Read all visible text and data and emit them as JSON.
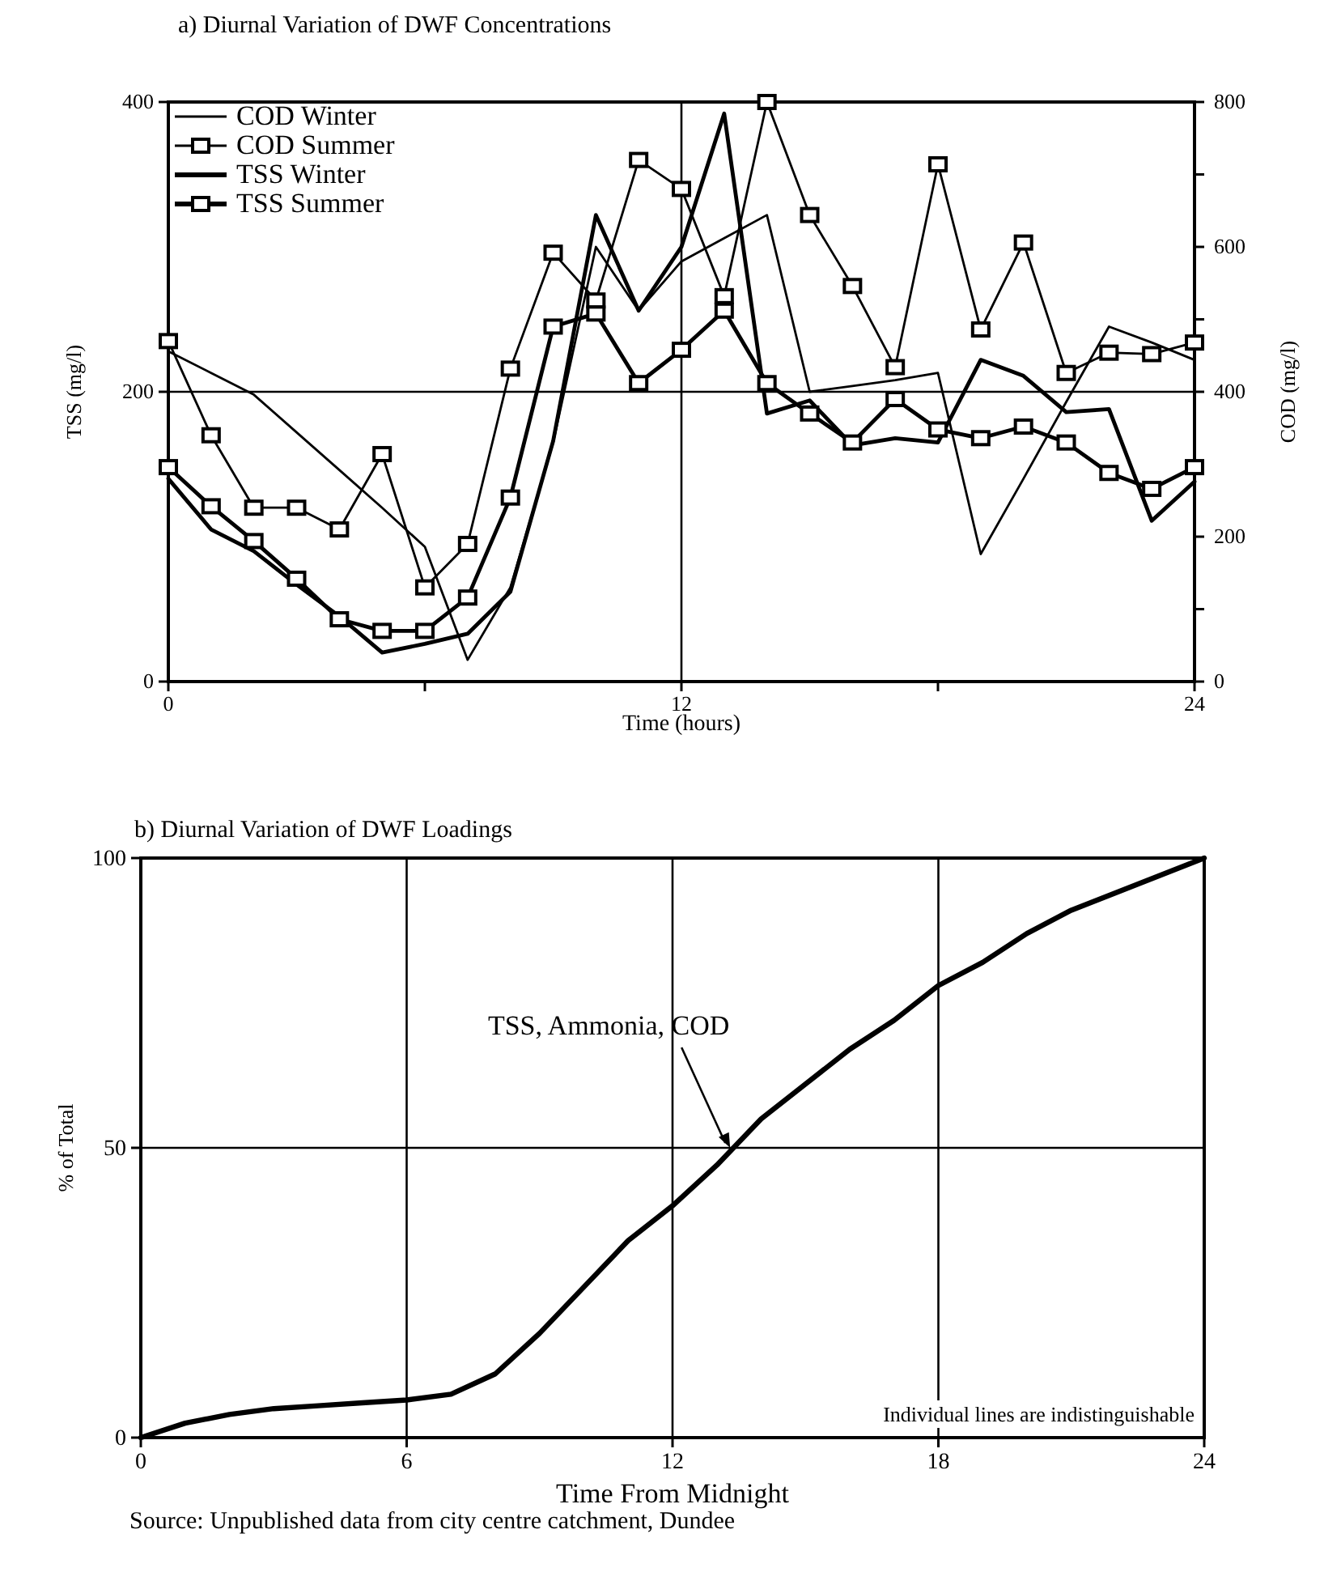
{
  "chart_data": [
    {
      "type": "line",
      "title": "a) Diurnal Variation of DWF Concentrations",
      "xlabel": "Time (hours)",
      "ylabel": "TSS (mg/l)",
      "y2label": "COD (mg/l)",
      "x": [
        0,
        1,
        2,
        3,
        4,
        5,
        6,
        7,
        8,
        9,
        10,
        11,
        12,
        13,
        14,
        15,
        16,
        17,
        18,
        19,
        20,
        21,
        22,
        23,
        24
      ],
      "series": [
        {
          "name": "COD Winter",
          "color": "#000000",
          "axis": "y2",
          "marker": "none",
          "values": [
            456,
            426,
            396,
            344,
            292,
            240,
            186,
            30,
            130,
            330,
            600,
            512,
            580,
            612,
            644,
            400,
            408,
            416,
            426,
            176,
            280,
            386,
            490,
            468,
            444
          ]
        },
        {
          "name": "COD Summer",
          "color": "#000000",
          "axis": "y2",
          "marker": "square",
          "values": [
            470,
            340,
            240,
            240,
            210,
            314,
            130,
            190,
            432,
            592,
            526,
            720,
            680,
            532,
            800,
            644,
            546,
            434,
            714,
            486,
            606,
            426,
            454,
            452,
            468
          ]
        },
        {
          "name": "TSS Winter",
          "color": "#000000",
          "marker": "none",
          "values": [
            140,
            105,
            90,
            67,
            45,
            20,
            26,
            33,
            62,
            166,
            322,
            256,
            300,
            392,
            185,
            194,
            163,
            168,
            165,
            222,
            211,
            186,
            188,
            111,
            138
          ]
        },
        {
          "name": "TSS Summer",
          "color": "#000000",
          "marker": "square",
          "values": [
            148,
            121,
            97,
            71,
            43,
            35,
            35,
            58,
            127,
            245,
            254,
            206,
            229,
            256,
            206,
            185,
            165,
            195,
            174,
            168,
            176,
            165,
            144,
            133,
            148
          ]
        }
      ],
      "xlim": [
        0,
        24
      ],
      "xticks": [
        0,
        {
          "value": 6,
          "label": null
        },
        12,
        {
          "value": 18,
          "label": null
        },
        24
      ],
      "ylim": [
        0,
        400
      ],
      "yticks": [
        0,
        200,
        400
      ],
      "y2lim": [
        0,
        800
      ],
      "y2ticks": [
        0,
        {
          "value": 100,
          "label": null
        },
        200,
        {
          "value": 300,
          "label": null
        },
        400,
        {
          "value": 500,
          "label": null
        },
        600,
        {
          "value": 700,
          "label": null
        },
        800
      ],
      "grid": true,
      "legend": "top left"
    },
    {
      "type": "line",
      "title": "b) Diurnal Variation of DWF Loadings",
      "xlabel": "Time From Midnight",
      "ylabel": "% of Total",
      "x": [
        0,
        1,
        2,
        3,
        4,
        5,
        6,
        7,
        8,
        9,
        10,
        11,
        12,
        13,
        14,
        15,
        16,
        17,
        18,
        19,
        20,
        21,
        22,
        23,
        24
      ],
      "series": [
        {
          "color": "#000000",
          "values": [
            0,
            2.5,
            4,
            5,
            5.5,
            6,
            6.5,
            7.5,
            11,
            18,
            26,
            34,
            40,
            47,
            55,
            61,
            67,
            72,
            78,
            82,
            87,
            91,
            94,
            97,
            100
          ]
        }
      ],
      "xlim": [
        0,
        24
      ],
      "xticks": [
        0,
        6,
        12,
        18,
        24
      ],
      "ylim": [
        0,
        100
      ],
      "yticks": [
        0,
        50,
        100
      ],
      "grid": true,
      "legend": false,
      "annotations": [
        {
          "text": "TSS, Ammonia, COD",
          "x": 13.3,
          "y": 50
        },
        "Individual lines are indistinguishable",
        "Source:  Unpublished data from city centre catchment, Dundee"
      ]
    }
  ]
}
